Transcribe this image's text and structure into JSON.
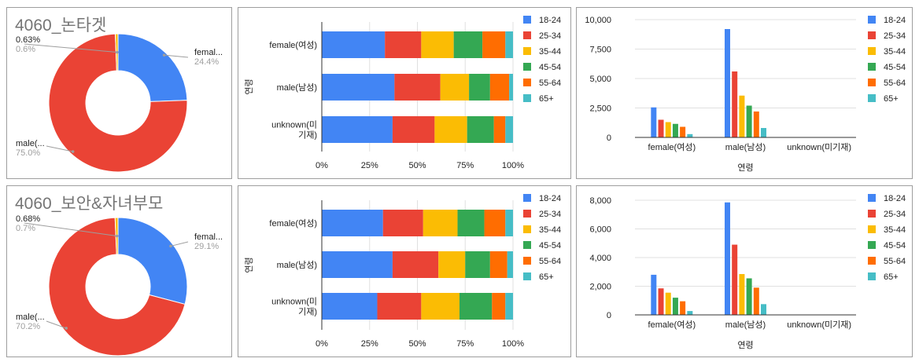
{
  "palette": {
    "18-24": "#4285F4",
    "25-34": "#EA4335",
    "35-44": "#FBBC04",
    "45-54": "#34A853",
    "55-64": "#FF6D01",
    "65+": "#46BDC6"
  },
  "chart_data": [
    {
      "id": "pie1",
      "type": "pie",
      "donut": true,
      "title": "4060_논타겟",
      "slices": [
        {
          "label": "femal...",
          "percent_label": "24.4%",
          "value": 24.4,
          "color": "#4285F4"
        },
        {
          "label": "male(...",
          "percent_label": "75.0%",
          "value": 75.0,
          "color": "#EA4335"
        },
        {
          "label": "0.63%",
          "percent_label": "0.6%",
          "value": 0.63,
          "color": "#FBBC04"
        }
      ]
    },
    {
      "id": "hbar1",
      "type": "bar",
      "orientation": "horizontal",
      "stacked": "percent",
      "ylabel": "연령",
      "categories": [
        [
          "female(여성)"
        ],
        [
          "male(남성)"
        ],
        [
          "unknown(미",
          "기재)"
        ]
      ],
      "xticks": [
        "0%",
        "25%",
        "50%",
        "75%",
        "100%"
      ],
      "series": [
        {
          "name": "18-24",
          "values": [
            33,
            38,
            37
          ]
        },
        {
          "name": "25-34",
          "values": [
            19,
            24,
            22
          ]
        },
        {
          "name": "35-44",
          "values": [
            17,
            15,
            17
          ]
        },
        {
          "name": "45-54",
          "values": [
            15,
            11,
            14
          ]
        },
        {
          "name": "55-64",
          "values": [
            12,
            10,
            6
          ]
        },
        {
          "name": "65+",
          "values": [
            4,
            2,
            4
          ]
        }
      ]
    },
    {
      "id": "vbar1",
      "type": "bar",
      "orientation": "vertical",
      "xlabel": "연령",
      "ylim": [
        0,
        10000
      ],
      "yticks": [
        0,
        2500,
        5000,
        7500,
        10000
      ],
      "ytick_labels": [
        "0",
        "2,500",
        "5,000",
        "7,500",
        "10,000"
      ],
      "categories": [
        "female(여성)",
        "male(남성)",
        "unknown(미기재)"
      ],
      "series": [
        {
          "name": "18-24",
          "values": [
            2550,
            9200,
            20
          ]
        },
        {
          "name": "25-34",
          "values": [
            1500,
            5600,
            20
          ]
        },
        {
          "name": "35-44",
          "values": [
            1300,
            3550,
            20
          ]
        },
        {
          "name": "45-54",
          "values": [
            1150,
            2700,
            20
          ]
        },
        {
          "name": "55-64",
          "values": [
            900,
            2200,
            20
          ]
        },
        {
          "name": "65+",
          "values": [
            280,
            800,
            20
          ]
        }
      ]
    },
    {
      "id": "pie2",
      "type": "pie",
      "donut": true,
      "title": "4060_보안&자녀부모",
      "slices": [
        {
          "label": "femal...",
          "percent_label": "29.1%",
          "value": 29.1,
          "color": "#4285F4"
        },
        {
          "label": "male(...",
          "percent_label": "70.2%",
          "value": 70.2,
          "color": "#EA4335"
        },
        {
          "label": "0.68%",
          "percent_label": "0.7%",
          "value": 0.68,
          "color": "#FBBC04"
        }
      ]
    },
    {
      "id": "hbar2",
      "type": "bar",
      "orientation": "horizontal",
      "stacked": "percent",
      "ylabel": "연령",
      "categories": [
        [
          "female(여성)"
        ],
        [
          "male(남성)"
        ],
        [
          "unknown(미",
          "기재)"
        ]
      ],
      "xticks": [
        "0%",
        "25%",
        "50%",
        "75%",
        "100%"
      ],
      "series": [
        {
          "name": "18-24",
          "values": [
            32,
            37,
            29
          ]
        },
        {
          "name": "25-34",
          "values": [
            21,
            24,
            23
          ]
        },
        {
          "name": "35-44",
          "values": [
            18,
            14,
            20
          ]
        },
        {
          "name": "45-54",
          "values": [
            14,
            13,
            17
          ]
        },
        {
          "name": "55-64",
          "values": [
            11,
            9,
            7
          ]
        },
        {
          "name": "65+",
          "values": [
            4,
            3,
            4
          ]
        }
      ]
    },
    {
      "id": "vbar2",
      "type": "bar",
      "orientation": "vertical",
      "xlabel": "연령",
      "ylim": [
        0,
        8000
      ],
      "yticks": [
        0,
        2000,
        4000,
        6000,
        8000
      ],
      "ytick_labels": [
        "0",
        "2,000",
        "4,000",
        "6,000",
        "8,000"
      ],
      "categories": [
        "female(여성)",
        "male(남성)",
        "unknown(미기재)"
      ],
      "series": [
        {
          "name": "18-24",
          "values": [
            2800,
            7850,
            20
          ]
        },
        {
          "name": "25-34",
          "values": [
            1850,
            4900,
            20
          ]
        },
        {
          "name": "35-44",
          "values": [
            1550,
            2850,
            20
          ]
        },
        {
          "name": "45-54",
          "values": [
            1200,
            2550,
            20
          ]
        },
        {
          "name": "55-64",
          "values": [
            950,
            1900,
            20
          ]
        },
        {
          "name": "65+",
          "values": [
            270,
            750,
            20
          ]
        }
      ]
    }
  ]
}
